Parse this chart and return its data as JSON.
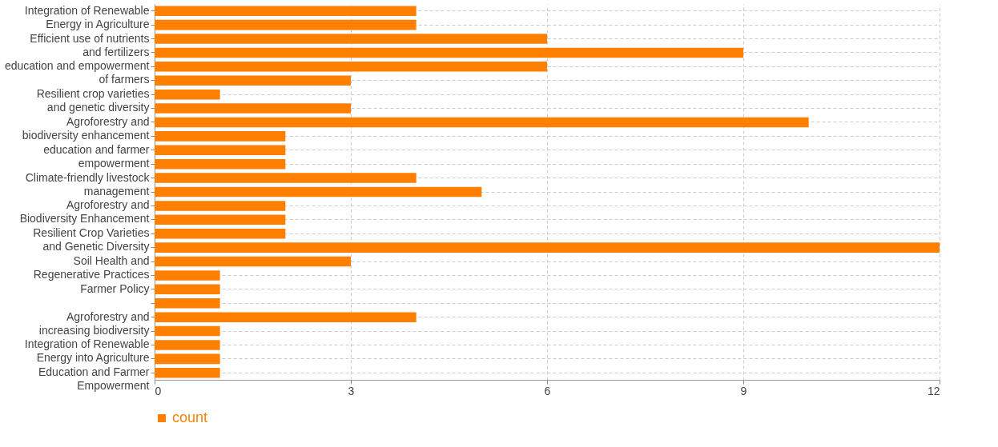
{
  "chart_data": {
    "type": "bar",
    "orientation": "horizontal",
    "categories": [
      "Integration of Renewable Energy in Agriculture",
      null,
      "Efficient use of nutrients and fertilizers",
      null,
      "education and empowerment of farmers",
      null,
      "Resilient crop varieties and genetic diversity",
      null,
      "Agroforestry and biodiversity enhancement",
      null,
      "education and farmer empowerment",
      null,
      "Climate-friendly livestock management",
      null,
      "Agroforestry and Biodiversity Enhancement",
      null,
      "Resilient Crop Varieties and Genetic Diversity",
      null,
      "Soil Health and Regenerative Practices",
      null,
      "Farmer Policy",
      null,
      "Agroforestry and increasing biodiversity",
      null,
      "Integration of Renewable Energy into Agriculture",
      null,
      "Education and Farmer Empowerment"
    ],
    "series": [
      {
        "name": "count",
        "color": "#ff7f00",
        "values": [
          4,
          4,
          6,
          9,
          6,
          3,
          1,
          3,
          10,
          2,
          2,
          2,
          4,
          5,
          2,
          2,
          2,
          12,
          3,
          1,
          1,
          1,
          4,
          1,
          1,
          1,
          1
        ]
      }
    ],
    "xlim": [
      0,
      12
    ],
    "xticks": [
      0,
      3,
      6,
      9,
      12
    ],
    "grid": true,
    "legend": "bottom"
  }
}
